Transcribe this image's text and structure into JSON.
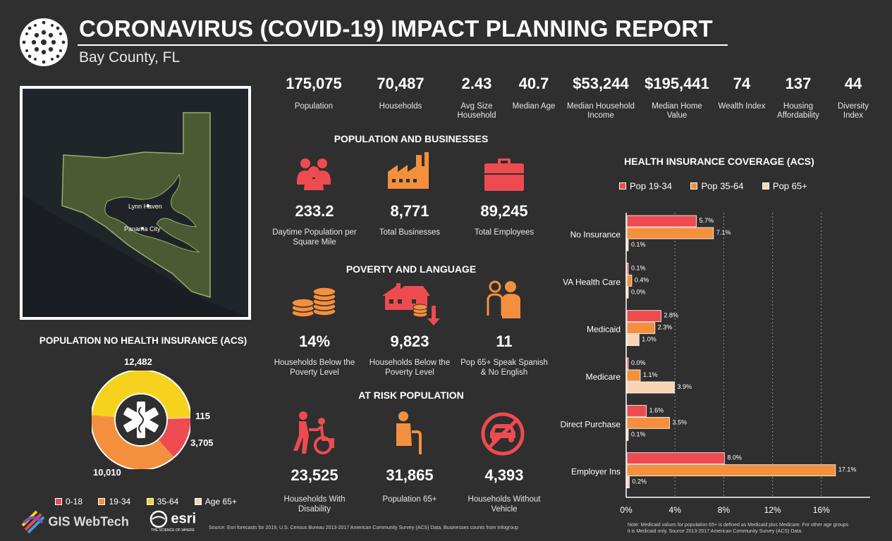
{
  "header": {
    "title": "CORONAVIRUS (COVID-19) IMPACT PLANNING REPORT",
    "subtitle": "Bay County, FL"
  },
  "map": {
    "labels": [
      "Lynn Haven",
      "Panama City"
    ]
  },
  "stats": [
    {
      "value": "175,075",
      "label": "Population"
    },
    {
      "value": "70,487",
      "label": "Households"
    },
    {
      "value": "2.43",
      "label": "Avg Size Household"
    },
    {
      "value": "40.7",
      "label": "Median Age"
    },
    {
      "value": "$53,244",
      "label": "Median Household Income"
    },
    {
      "value": "$195,441",
      "label": "Median Home Value"
    },
    {
      "value": "74",
      "label": "Wealth Index"
    },
    {
      "value": "137",
      "label": "Housing Affordability"
    },
    {
      "value": "44",
      "label": "Diversity Index"
    }
  ],
  "population_businesses": {
    "heading": "POPULATION AND BUSINESSES",
    "items": [
      {
        "icon": "people-icon",
        "value": "233.2",
        "label": "Daytime Population per Square Mile"
      },
      {
        "icon": "factory-icon",
        "value": "8,771",
        "label": "Total Businesses"
      },
      {
        "icon": "briefcase-icon",
        "value": "89,245",
        "label": "Total Employees"
      }
    ]
  },
  "poverty_language": {
    "heading": "POVERTY AND LANGUAGE",
    "items": [
      {
        "icon": "coins-icon",
        "value": "14%",
        "label": "Households Below the Poverty Level"
      },
      {
        "icon": "house-decline-icon",
        "value": "9,823",
        "label": "Households Below the Poverty Level"
      },
      {
        "icon": "two-people-icon",
        "value": "11",
        "label": "Pop 65+ Speak Spanish & No English"
      }
    ]
  },
  "at_risk": {
    "heading": "AT RISK POPULATION",
    "items": [
      {
        "icon": "wheelchair-icon",
        "value": "23,525",
        "label": "Households With Disability"
      },
      {
        "icon": "elderly-icon",
        "value": "31,865",
        "label": "Population 65+"
      },
      {
        "icon": "no-vehicle-icon",
        "value": "4,393",
        "label": "Households Without Vehicle"
      }
    ]
  },
  "donut": {
    "heading": "POPULATION NO HEALTH INSURANCE (ACS)",
    "labels": {
      "top": "12,482",
      "r1": "115",
      "r2": "3,705",
      "bottom": "10,010"
    },
    "legend": [
      {
        "label": "0-18",
        "color": "#ee4b50"
      },
      {
        "label": "19-34",
        "color": "#f4903d"
      },
      {
        "label": "35-64",
        "color": "#f6d21f"
      },
      {
        "label": "Age 65+",
        "color": "#f9d4b4"
      }
    ]
  },
  "chart_data": {
    "type": "bar",
    "orientation": "horizontal",
    "title": "HEALTH INSURANCE COVERAGE (ACS)",
    "categories": [
      "No Insurance",
      "VA Health Care",
      "Medicaid",
      "Medicare",
      "Direct Purchase",
      "Employer Ins"
    ],
    "series": [
      {
        "name": "Pop 19-34",
        "color": "#ee4b50",
        "values": [
          5.7,
          0.1,
          2.8,
          0.0,
          1.6,
          8.0
        ],
        "labels": [
          "5.7%",
          "0.1%",
          "2.8%",
          "0.0%",
          "1.6%",
          "8.0%"
        ]
      },
      {
        "name": "Pop 35-64",
        "color": "#f4903d",
        "values": [
          7.1,
          0.4,
          2.3,
          1.1,
          3.5,
          17.1
        ],
        "labels": [
          "7.1%",
          "0.4%",
          "2.3%",
          "1.1%",
          "3.5%",
          "17.1%"
        ]
      },
      {
        "name": "Pop 65+",
        "color": "#f9d4b4",
        "values": [
          0.1,
          0.0,
          1.0,
          3.9,
          0.1,
          0.2
        ],
        "labels": [
          "0.1%",
          "0.0%",
          "1.0%",
          "3.9%",
          "0.1%",
          "0.2%"
        ]
      }
    ],
    "xlim": [
      0,
      20
    ],
    "xticks": [
      "0%",
      "4%",
      "8%",
      "12%",
      "16%"
    ],
    "xtick_values": [
      0,
      4,
      8,
      12,
      16
    ],
    "grid": "vertical-dashed",
    "legend_position": "top"
  },
  "footer": {
    "logo1": "GIS WebTech",
    "logo2": "esri",
    "logo2_tag": "THE SCIENCE OF WHERE",
    "source": "Source: Esri forecasts for 2019, U.S. Census Bureau 2013-2017 American Community Survey (ACS) Data, Businesses counts from Infogroup",
    "note1": "Note: Medicaid values for population 65+ is defined as Medicaid plus Medicare. For other age groups",
    "note2": "it is Medicaid only. Source 2013-2017 American Community Survey (ACS) Data."
  },
  "colors": {
    "red": "#ee4b50",
    "orange": "#f4903d",
    "yellow": "#f6d21f",
    "peach": "#f9d4b4",
    "background": "#2f2f2f"
  }
}
